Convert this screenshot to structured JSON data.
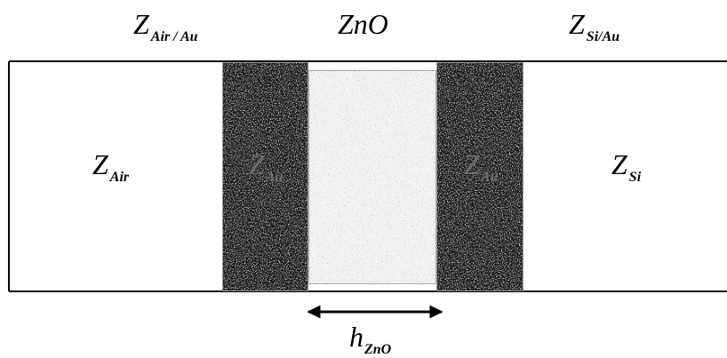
{
  "labels": {
    "top_left": {
      "main": "Z",
      "sub": "Air / Au"
    },
    "top_center": {
      "main": "ZnO"
    },
    "top_right": {
      "main": "Z",
      "sub": "Si/Au"
    },
    "left_region": {
      "main": "Z",
      "sub": "Air"
    },
    "right_region": {
      "main": "Z",
      "sub": "Si"
    },
    "electrode_left": {
      "main": "Z",
      "sub": "Au"
    },
    "electrode_right": {
      "main": "Z",
      "sub": "Au"
    },
    "thickness": {
      "main": "h",
      "sub": "ZnO"
    }
  },
  "colors": {
    "outline": "#000000",
    "electrode": "#1a1a1a",
    "electrode_border": "#8a8a8a",
    "zno": "#f2f2f2",
    "zno_border": "#9a9a9a",
    "arrow": "#000000"
  }
}
